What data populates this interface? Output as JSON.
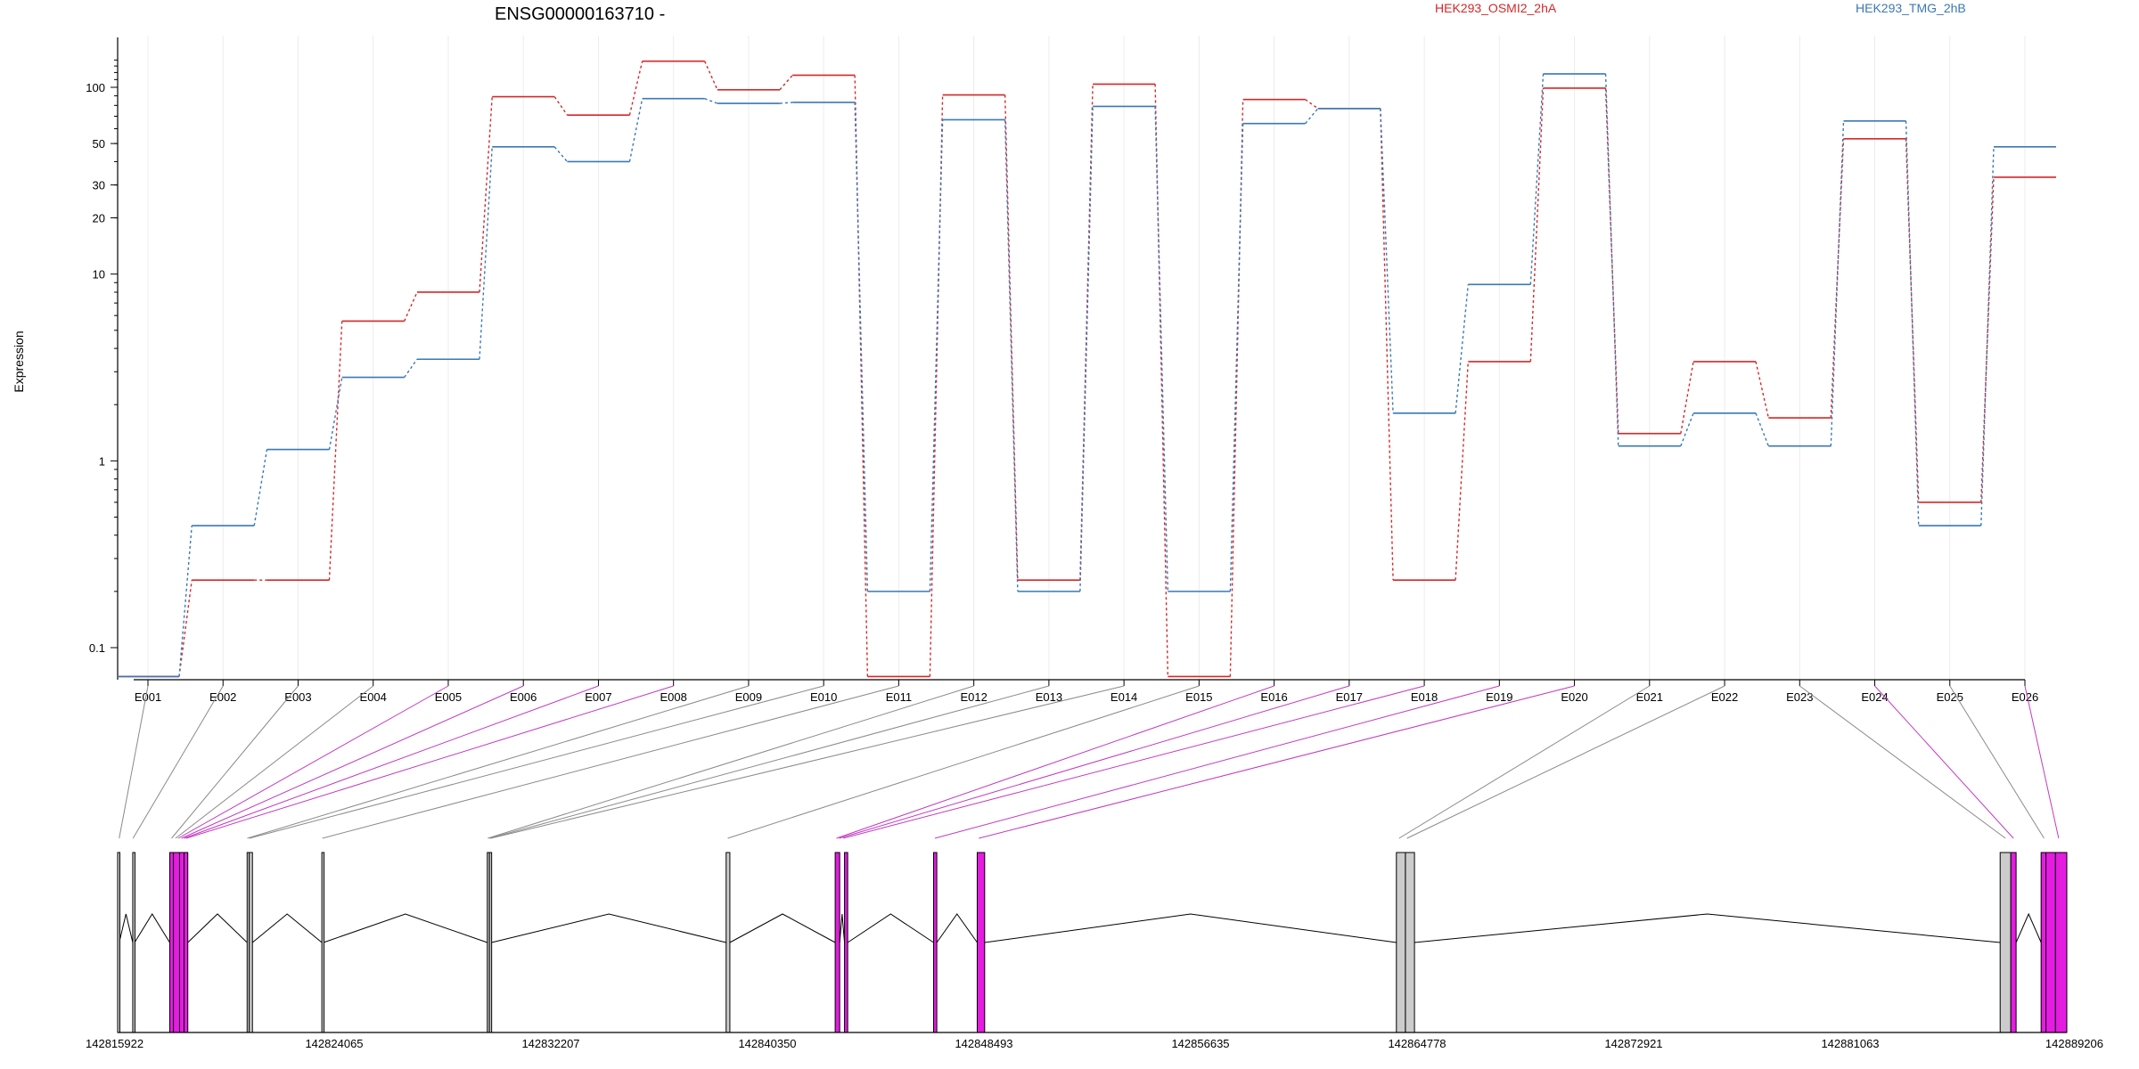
{
  "chart_data": {
    "type": "line",
    "title": "ENSG00000163710 -",
    "ylabel": "Expression",
    "y_scale": "log",
    "y_ticks": [
      0.1,
      1,
      10,
      20,
      30,
      50,
      100
    ],
    "y_tick_labels": [
      "0.1",
      "1",
      "10",
      "20",
      "30",
      "50",
      "100"
    ],
    "grid": "vertical",
    "legend_placement": "top",
    "categories": [
      "E001",
      "E002",
      "E003",
      "E004",
      "E005",
      "E006",
      "E007",
      "E008",
      "E009",
      "E010",
      "E011",
      "E012",
      "E013",
      "E014",
      "E015",
      "E016",
      "E017",
      "E018",
      "E019",
      "E020",
      "E021",
      "E022",
      "E023",
      "E024",
      "E025",
      "E026"
    ],
    "series": [
      {
        "name": "HEK293_OSMI2_2hA",
        "color": "#d62728",
        "values": [
          0.07,
          0.23,
          0.23,
          5.6,
          8.0,
          89,
          71,
          138,
          97,
          116,
          0.07,
          91,
          0.23,
          104,
          0.07,
          86,
          77,
          0.23,
          3.4,
          99,
          1.4,
          3.4,
          1.7,
          53,
          0.6,
          33
        ]
      },
      {
        "name": "HEK293_TMG_2hB",
        "color": "#3a78b5",
        "values": [
          0.07,
          0.45,
          1.15,
          2.8,
          3.5,
          48,
          40,
          87,
          82,
          83,
          0.2,
          67,
          0.2,
          79,
          0.2,
          64,
          77,
          1.8,
          8.8,
          118,
          1.2,
          1.8,
          1.2,
          66,
          0.45,
          48
        ]
      }
    ],
    "gene_model": {
      "coordinate_ticks": [
        "142815922",
        "142824065",
        "142832207",
        "142840350",
        "142848493",
        "142856635",
        "142864778",
        "142872921",
        "142881063",
        "142889206"
      ],
      "coordinate_range": [
        142815922,
        142889206
      ],
      "exon_fill_default": "#cccccc",
      "exon_fill_highlight": "#e41ce0",
      "exons": [
        {
          "id": "E001",
          "start": 142815922,
          "end": 142815980,
          "highlight": false
        },
        {
          "id": "E002",
          "start": 142816490,
          "end": 142816560,
          "highlight": false
        },
        {
          "id": "E003",
          "start": 142817880,
          "end": 142818020,
          "highlight": true
        },
        {
          "id": "E004",
          "start": 142818020,
          "end": 142818250,
          "highlight": true
        },
        {
          "id": "E005",
          "start": 142818250,
          "end": 142818420,
          "highlight": true
        },
        {
          "id": "E006",
          "start": 142818420,
          "end": 142818560,
          "highlight": true
        },
        {
          "id": "E007",
          "start": 142820790,
          "end": 142820870,
          "highlight": false
        },
        {
          "id": "E008",
          "start": 142820870,
          "end": 142820990,
          "highlight": false
        },
        {
          "id": "E009",
          "start": 142823600,
          "end": 142823660,
          "highlight": false
        },
        {
          "id": "E010",
          "start": 142829820,
          "end": 142829900,
          "highlight": false
        },
        {
          "id": "E011",
          "start": 142829900,
          "end": 142829980,
          "highlight": false
        },
        {
          "id": "E012",
          "start": 142838800,
          "end": 142838940,
          "highlight": false
        },
        {
          "id": "E013",
          "start": 142842900,
          "end": 142843070,
          "highlight": true
        },
        {
          "id": "E014",
          "start": 142843250,
          "end": 142843370,
          "highlight": true
        },
        {
          "id": "E015",
          "start": 142846600,
          "end": 142846720,
          "highlight": true
        },
        {
          "id": "E016",
          "start": 142848240,
          "end": 142848520,
          "highlight": true
        },
        {
          "id": "E017",
          "start": 142864000,
          "end": 142864340,
          "highlight": false
        },
        {
          "id": "E018",
          "start": 142864340,
          "end": 142864680,
          "highlight": false
        },
        {
          "id": "E019",
          "start": 142886700,
          "end": 142887100,
          "highlight": false
        },
        {
          "id": "E020",
          "start": 142887100,
          "end": 142887300,
          "highlight": true
        },
        {
          "id": "E021",
          "start": 142888240,
          "end": 142888420,
          "highlight": true
        },
        {
          "id": "E022",
          "start": 142888420,
          "end": 142888780,
          "highlight": true
        },
        {
          "id": "E023",
          "start": 142888780,
          "end": 142889206,
          "highlight": true
        }
      ],
      "connectors": [
        {
          "exon": "E001",
          "target": 142815980,
          "highlight": false
        },
        {
          "exon": "E002",
          "target": 142816500,
          "highlight": false
        },
        {
          "exon": "E003",
          "target": 142817950,
          "highlight": false
        },
        {
          "exon": "E004",
          "target": 142818100,
          "highlight": false
        },
        {
          "exon": "E005",
          "target": 142818200,
          "highlight": true
        },
        {
          "exon": "E006",
          "target": 142818320,
          "highlight": true
        },
        {
          "exon": "E007",
          "target": 142818420,
          "highlight": true
        },
        {
          "exon": "E008",
          "target": 142818500,
          "highlight": true
        },
        {
          "exon": "E009",
          "target": 142820800,
          "highlight": false
        },
        {
          "exon": "E010",
          "target": 142820880,
          "highlight": false
        },
        {
          "exon": "E011",
          "target": 142823620,
          "highlight": false
        },
        {
          "exon": "E012",
          "target": 142829840,
          "highlight": false
        },
        {
          "exon": "E013",
          "target": 142829900,
          "highlight": false
        },
        {
          "exon": "E014",
          "target": 142829950,
          "highlight": false
        },
        {
          "exon": "E015",
          "target": 142838860,
          "highlight": false
        },
        {
          "exon": "E016",
          "target": 142842950,
          "highlight": true
        },
        {
          "exon": "E017",
          "target": 142843050,
          "highlight": true
        },
        {
          "exon": "E018",
          "target": 142843200,
          "highlight": true
        },
        {
          "exon": "E019",
          "target": 142846650,
          "highlight": true
        },
        {
          "exon": "E020",
          "target": 142848300,
          "highlight": true
        },
        {
          "exon": "E021",
          "target": 142864100,
          "highlight": false
        },
        {
          "exon": "E022",
          "target": 142864400,
          "highlight": false
        },
        {
          "exon": "E023",
          "target": 142886900,
          "highlight": false
        },
        {
          "exon": "E024",
          "target": 142887200,
          "highlight": true
        },
        {
          "exon": "E025",
          "target": 142888350,
          "highlight": false
        },
        {
          "exon": "E026",
          "target": 142888900,
          "highlight": true
        }
      ],
      "introns": [
        {
          "from": 142815980,
          "to": 142816490
        },
        {
          "from": 142816560,
          "to": 142817880
        },
        {
          "from": 142818560,
          "to": 142820790
        },
        {
          "from": 142820990,
          "to": 142823600
        },
        {
          "from": 142823660,
          "to": 142829820
        },
        {
          "from": 142829980,
          "to": 142838800
        },
        {
          "from": 142838940,
          "to": 142842900
        },
        {
          "from": 142843070,
          "to": 142843250
        },
        {
          "from": 142843370,
          "to": 142846600
        },
        {
          "from": 142846720,
          "to": 142848240
        },
        {
          "from": 142848520,
          "to": 142864000
        },
        {
          "from": 142864680,
          "to": 142886700
        },
        {
          "from": 142887300,
          "to": 142888240
        }
      ]
    }
  }
}
